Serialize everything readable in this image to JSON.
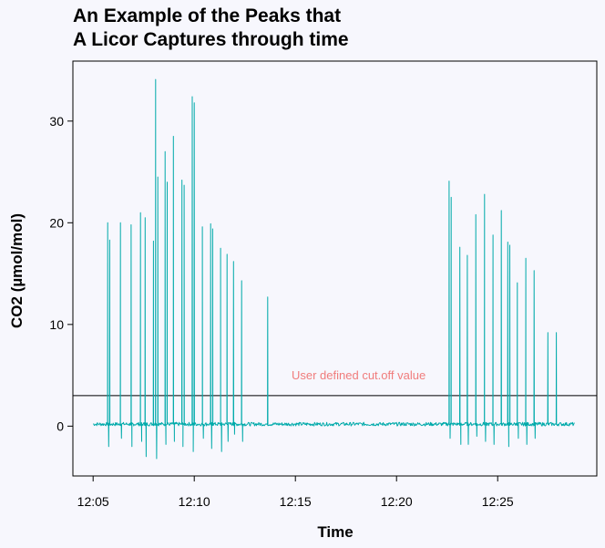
{
  "chart_data": {
    "type": "line",
    "title_lines": [
      "An Example of the Peaks that",
      "A Licor Captures through time"
    ],
    "xlabel": "Time",
    "ylabel": "CO2 (µmol/mol)",
    "x_unit": "minutes after 12:00",
    "x_ticks": [
      {
        "value": 5,
        "label": "12:05"
      },
      {
        "value": 10,
        "label": "12:10"
      },
      {
        "value": 15,
        "label": "12:15"
      },
      {
        "value": 20,
        "label": "12:20"
      },
      {
        "value": 25,
        "label": "12:25"
      }
    ],
    "y_ticks": [
      0,
      10,
      20,
      30
    ],
    "xlim": [
      4.0,
      29.9
    ],
    "ylim": [
      -4.9,
      35.9
    ],
    "grid": false,
    "colors": {
      "line": "#00aaaa",
      "annotation": "#f07c7c",
      "cutoff": "#000000"
    },
    "baseline": 0.2,
    "cutoff": {
      "value": 3.0,
      "label": "User defined cut.off value"
    },
    "peaks": [
      {
        "time": 5.72,
        "height": 20.0
      },
      {
        "time": 5.82,
        "height": 18.3
      },
      {
        "time": 6.35,
        "height": 20.0
      },
      {
        "time": 6.88,
        "height": 19.8
      },
      {
        "time": 7.34,
        "height": 21.0
      },
      {
        "time": 7.57,
        "height": 20.5
      },
      {
        "time": 7.98,
        "height": 18.2
      },
      {
        "time": 8.09,
        "height": 34.1
      },
      {
        "time": 8.2,
        "height": 24.5
      },
      {
        "time": 8.56,
        "height": 27.0
      },
      {
        "time": 8.66,
        "height": 24.0
      },
      {
        "time": 8.97,
        "height": 28.5
      },
      {
        "time": 9.39,
        "height": 24.2
      },
      {
        "time": 9.5,
        "height": 23.7
      },
      {
        "time": 9.9,
        "height": 32.4
      },
      {
        "time": 10.0,
        "height": 31.8
      },
      {
        "time": 10.4,
        "height": 19.6
      },
      {
        "time": 10.81,
        "height": 19.9
      },
      {
        "time": 10.91,
        "height": 19.4
      },
      {
        "time": 11.3,
        "height": 17.5
      },
      {
        "time": 11.62,
        "height": 16.9
      },
      {
        "time": 11.94,
        "height": 16.2
      },
      {
        "time": 12.34,
        "height": 14.3
      },
      {
        "time": 13.63,
        "height": 12.7
      },
      {
        "time": 22.6,
        "height": 24.1
      },
      {
        "time": 22.7,
        "height": 22.5
      },
      {
        "time": 23.13,
        "height": 17.6
      },
      {
        "time": 23.5,
        "height": 16.8
      },
      {
        "time": 23.92,
        "height": 20.8
      },
      {
        "time": 24.35,
        "height": 22.8
      },
      {
        "time": 24.77,
        "height": 18.8
      },
      {
        "time": 25.18,
        "height": 21.2
      },
      {
        "time": 25.5,
        "height": 18.1
      },
      {
        "time": 25.6,
        "height": 17.8
      },
      {
        "time": 25.97,
        "height": 14.1
      },
      {
        "time": 26.39,
        "height": 16.5
      },
      {
        "time": 26.8,
        "height": 15.3
      },
      {
        "time": 27.48,
        "height": 9.2
      },
      {
        "time": 27.9,
        "height": 9.2
      }
    ],
    "dips": [
      {
        "time": 5.77,
        "depth": -2.0
      },
      {
        "time": 6.4,
        "depth": -1.2
      },
      {
        "time": 6.92,
        "depth": -2.0
      },
      {
        "time": 7.4,
        "depth": -1.5
      },
      {
        "time": 7.62,
        "depth": -3.0
      },
      {
        "time": 8.14,
        "depth": -3.2
      },
      {
        "time": 8.6,
        "depth": -1.8
      },
      {
        "time": 9.02,
        "depth": -1.5
      },
      {
        "time": 9.44,
        "depth": -2.0
      },
      {
        "time": 9.95,
        "depth": -2.5
      },
      {
        "time": 10.45,
        "depth": -1.2
      },
      {
        "time": 10.86,
        "depth": -2.2
      },
      {
        "time": 11.35,
        "depth": -2.5
      },
      {
        "time": 11.67,
        "depth": -1.5
      },
      {
        "time": 11.99,
        "depth": -0.8
      },
      {
        "time": 12.39,
        "depth": -1.5
      },
      {
        "time": 22.65,
        "depth": -1.2
      },
      {
        "time": 23.18,
        "depth": -1.8
      },
      {
        "time": 23.55,
        "depth": -1.8
      },
      {
        "time": 23.97,
        "depth": -1.0
      },
      {
        "time": 24.4,
        "depth": -1.5
      },
      {
        "time": 24.82,
        "depth": -1.8
      },
      {
        "time": 25.55,
        "depth": -2.0
      },
      {
        "time": 26.02,
        "depth": -1.2
      },
      {
        "time": 26.44,
        "depth": -1.8
      },
      {
        "time": 26.85,
        "depth": -1.2
      }
    ],
    "x_start": 5.0,
    "x_end": 28.8
  }
}
